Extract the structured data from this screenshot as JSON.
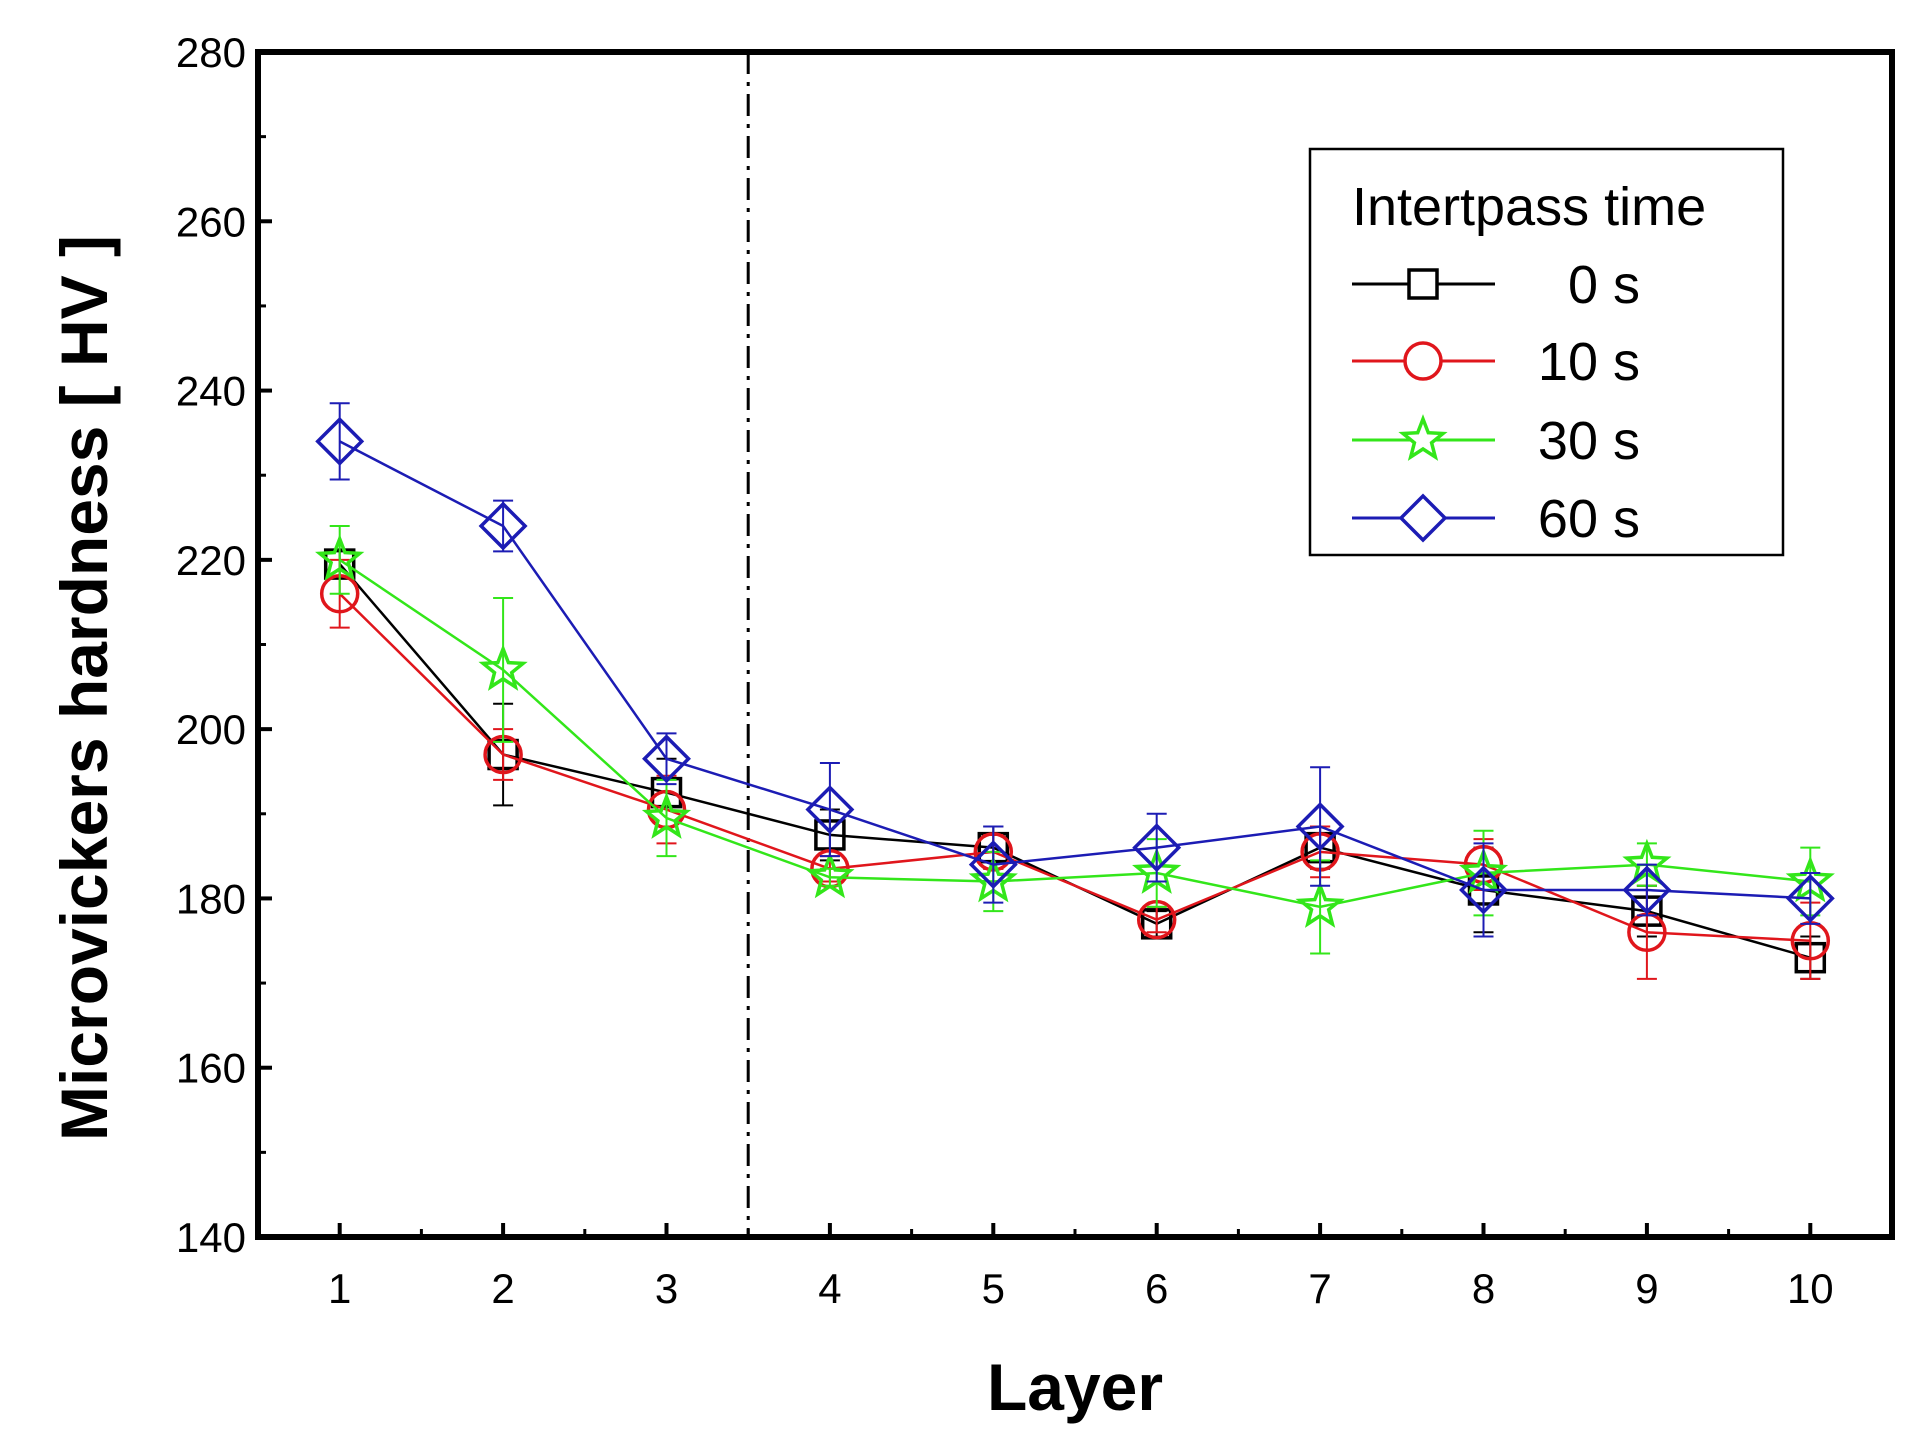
{
  "chart_data": {
    "type": "line",
    "title": "",
    "xlabel": "Layer",
    "ylabel": "Microvickers hardness [ HV ]",
    "xlim": [
      0.5,
      10.5
    ],
    "ylim": [
      140,
      280
    ],
    "xticks": [
      1,
      2,
      3,
      4,
      5,
      6,
      7,
      8,
      9,
      10
    ],
    "yticks": [
      140,
      160,
      180,
      200,
      220,
      240,
      260,
      280
    ],
    "x": [
      1,
      2,
      3,
      4,
      5,
      6,
      7,
      8,
      9,
      10
    ],
    "reference_line_x": 3.5,
    "legend": {
      "title": "Intertpass time",
      "position": "top-right"
    },
    "series": [
      {
        "name": "0 s",
        "color": "#000000",
        "marker": "square",
        "values": [
          219.5,
          197,
          192.5,
          187.5,
          186,
          177,
          186,
          181,
          178.5,
          173
        ],
        "errors": [
          1.5,
          6,
          4,
          3,
          2.5,
          1.5,
          2.5,
          5,
          3,
          2.5
        ]
      },
      {
        "name": "10 s",
        "color": "#e0161c",
        "marker": "circle",
        "values": [
          216,
          197,
          190.5,
          183.5,
          185.5,
          177.5,
          185.5,
          184,
          176,
          175
        ],
        "errors": [
          4,
          3,
          4,
          1.5,
          2,
          1.5,
          3,
          3,
          5.5,
          4.5
        ]
      },
      {
        "name": "30 s",
        "color": "#33e61a",
        "marker": "star",
        "values": [
          220,
          207,
          189.5,
          182.5,
          182,
          183,
          179,
          183,
          184,
          182
        ],
        "errors": [
          4,
          8.5,
          4.5,
          1,
          3.5,
          4,
          5.5,
          5,
          2.5,
          4
        ]
      },
      {
        "name": "60 s",
        "color": "#1c1cb4",
        "marker": "diamond",
        "values": [
          234,
          224,
          196.5,
          190.5,
          184,
          186,
          188.5,
          181,
          181,
          180
        ],
        "errors": [
          4.5,
          3,
          3,
          5.5,
          4.5,
          4,
          7,
          5.5,
          3,
          3
        ]
      }
    ]
  }
}
